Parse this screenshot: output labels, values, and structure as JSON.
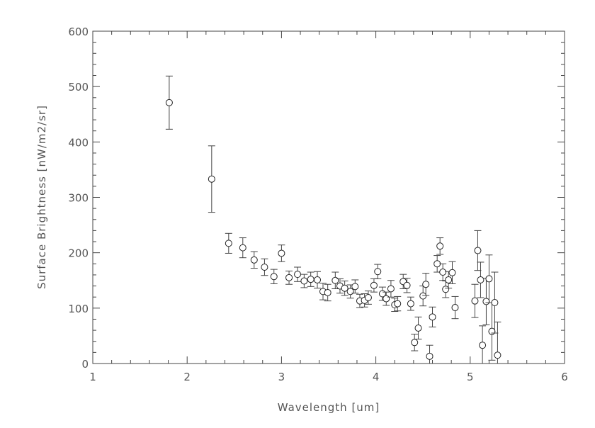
{
  "chart_data": {
    "type": "scatter",
    "title": "",
    "xlabel": "Wavelength [um]",
    "ylabel": "Surface Brightness [nW/m2/sr]",
    "xlim": [
      1,
      6
    ],
    "ylim": [
      0,
      600
    ],
    "xticks": [
      1,
      2,
      3,
      4,
      5,
      6
    ],
    "yticks": [
      0,
      100,
      200,
      300,
      400,
      500,
      600
    ],
    "grid": false,
    "marker": "open-circle",
    "error_bars": true,
    "color": "#444444",
    "points": [
      {
        "x": 1.81,
        "y": 471,
        "err": 48
      },
      {
        "x": 2.26,
        "y": 333,
        "err": 60
      },
      {
        "x": 2.44,
        "y": 217,
        "err": 18
      },
      {
        "x": 2.59,
        "y": 209,
        "err": 18
      },
      {
        "x": 2.71,
        "y": 187,
        "err": 15
      },
      {
        "x": 2.82,
        "y": 174,
        "err": 15
      },
      {
        "x": 2.92,
        "y": 157,
        "err": 13
      },
      {
        "x": 3.0,
        "y": 199,
        "err": 15
      },
      {
        "x": 3.08,
        "y": 155,
        "err": 12
      },
      {
        "x": 3.17,
        "y": 161,
        "err": 13
      },
      {
        "x": 3.24,
        "y": 149,
        "err": 12
      },
      {
        "x": 3.31,
        "y": 152,
        "err": 13
      },
      {
        "x": 3.38,
        "y": 151,
        "err": 15
      },
      {
        "x": 3.44,
        "y": 130,
        "err": 15
      },
      {
        "x": 3.49,
        "y": 128,
        "err": 15
      },
      {
        "x": 3.57,
        "y": 150,
        "err": 15
      },
      {
        "x": 3.62,
        "y": 140,
        "err": 13
      },
      {
        "x": 3.67,
        "y": 136,
        "err": 13
      },
      {
        "x": 3.73,
        "y": 130,
        "err": 12
      },
      {
        "x": 3.78,
        "y": 139,
        "err": 12
      },
      {
        "x": 3.83,
        "y": 113,
        "err": 12
      },
      {
        "x": 3.88,
        "y": 114,
        "err": 12
      },
      {
        "x": 3.92,
        "y": 119,
        "err": 12
      },
      {
        "x": 3.98,
        "y": 141,
        "err": 12
      },
      {
        "x": 4.02,
        "y": 166,
        "err": 13
      },
      {
        "x": 4.07,
        "y": 126,
        "err": 12
      },
      {
        "x": 4.11,
        "y": 117,
        "err": 12
      },
      {
        "x": 4.16,
        "y": 135,
        "err": 15
      },
      {
        "x": 4.2,
        "y": 106,
        "err": 12
      },
      {
        "x": 4.23,
        "y": 108,
        "err": 13
      },
      {
        "x": 4.29,
        "y": 148,
        "err": 13
      },
      {
        "x": 4.33,
        "y": 141,
        "err": 13
      },
      {
        "x": 4.37,
        "y": 108,
        "err": 12
      },
      {
        "x": 4.41,
        "y": 38,
        "err": 15
      },
      {
        "x": 4.45,
        "y": 64,
        "err": 20
      },
      {
        "x": 4.5,
        "y": 122,
        "err": 18
      },
      {
        "x": 4.53,
        "y": 143,
        "err": 20
      },
      {
        "x": 4.57,
        "y": 13,
        "err": 20
      },
      {
        "x": 4.6,
        "y": 84,
        "err": 18
      },
      {
        "x": 4.65,
        "y": 180,
        "err": 15
      },
      {
        "x": 4.68,
        "y": 212,
        "err": 15
      },
      {
        "x": 4.71,
        "y": 165,
        "err": 15
      },
      {
        "x": 4.74,
        "y": 134,
        "err": 15
      },
      {
        "x": 4.77,
        "y": 151,
        "err": 15
      },
      {
        "x": 4.81,
        "y": 164,
        "err": 20
      },
      {
        "x": 4.84,
        "y": 101,
        "err": 20
      },
      {
        "x": 5.05,
        "y": 113,
        "err": 30
      },
      {
        "x": 5.08,
        "y": 204,
        "err": 36
      },
      {
        "x": 5.11,
        "y": 151,
        "err": 32
      },
      {
        "x": 5.13,
        "y": 33,
        "err": 35
      },
      {
        "x": 5.17,
        "y": 112,
        "err": 42
      },
      {
        "x": 5.2,
        "y": 153,
        "err": 43
      },
      {
        "x": 5.23,
        "y": 58,
        "err": 52
      },
      {
        "x": 5.26,
        "y": 110,
        "err": 55
      },
      {
        "x": 5.29,
        "y": 15,
        "err": 60
      }
    ]
  }
}
